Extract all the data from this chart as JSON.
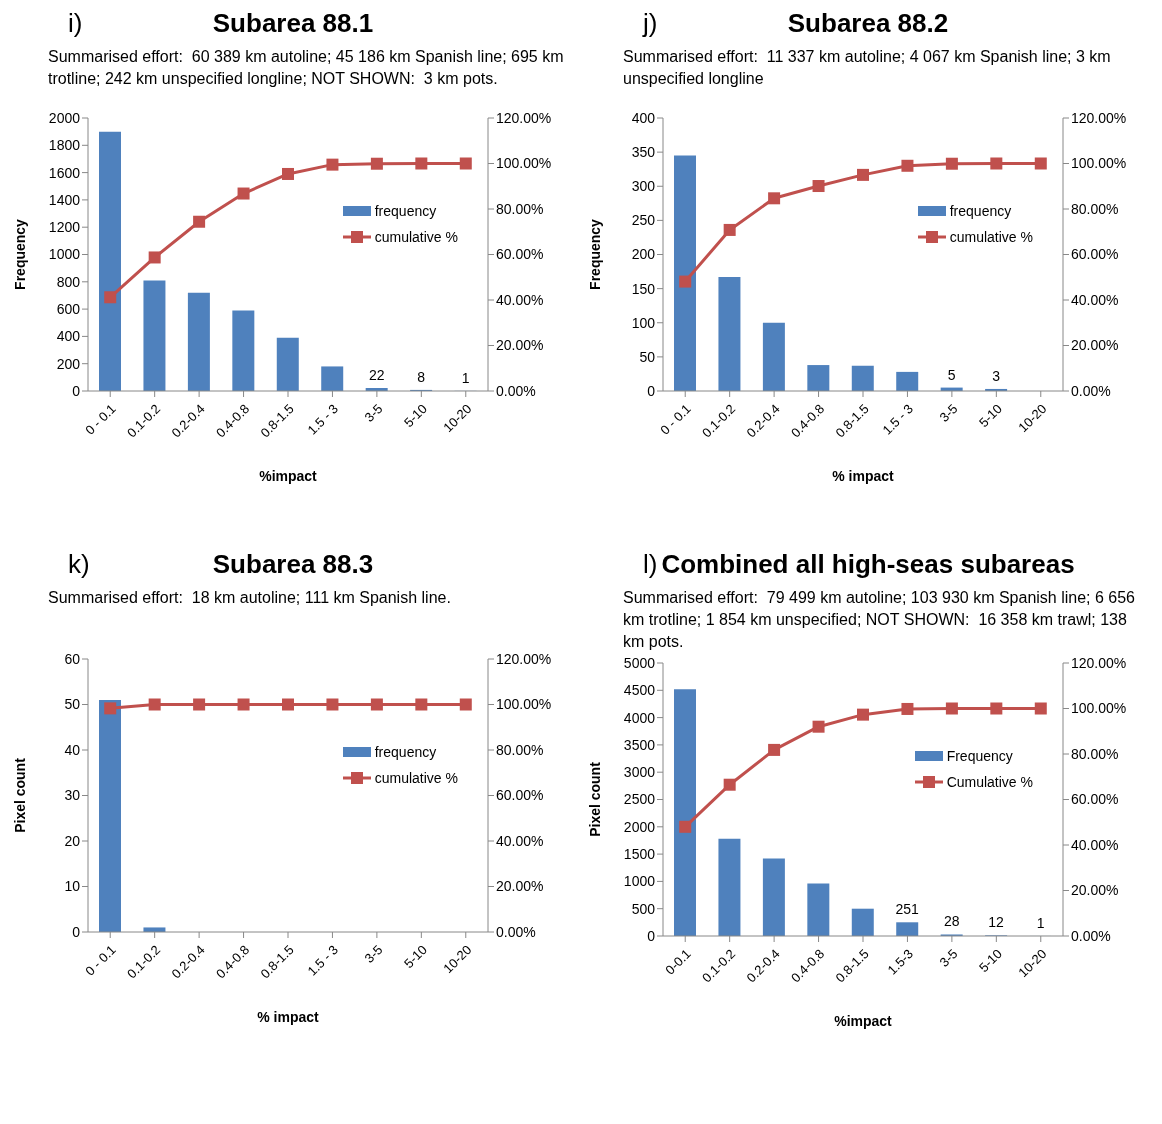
{
  "chart_data": [
    {
      "type": "bar",
      "title": "Subarea 88.1",
      "subtitle": "Summarised effort:  60 389 km autoline; 45 186 km Spanish line; 695 km trotline; 242 km unspecified longline; NOT SHOWN:  3 km pots.",
      "annotations": [
        "i)"
      ],
      "xlabel": "%impact",
      "ylabel": "Frequency",
      "categories": [
        "0 - 0.1",
        "0.1-0.2",
        "0.2-0.4",
        "0.4-0.8",
        "0.8-1.5",
        "1.5 - 3",
        "3-5",
        "5-10",
        "10-20"
      ],
      "series": [
        {
          "name": "frequency",
          "color": "#4f81bd",
          "values": [
            1900,
            810,
            720,
            590,
            390,
            180,
            22,
            8,
            1
          ],
          "value_labels": [
            null,
            null,
            null,
            null,
            null,
            null,
            "22",
            "8",
            "1"
          ]
        },
        {
          "name": "cumulative %",
          "type": "line",
          "axis": "y2",
          "color": "#c0504d",
          "values": [
            41.2,
            58.7,
            74.4,
            86.8,
            95.4,
            99.5,
            99.9,
            100,
            100
          ]
        }
      ],
      "ylim": [
        0,
        2000
      ],
      "yticks": [
        0,
        200,
        400,
        600,
        800,
        1000,
        1200,
        1400,
        1600,
        1800,
        2000
      ],
      "y2lim": [
        0,
        120
      ],
      "y2ticks": [
        {
          "value": 0,
          "label": "0.00%"
        },
        {
          "value": 20,
          "label": "20.00%"
        },
        {
          "value": 40,
          "label": "40.00%"
        },
        {
          "value": 60,
          "label": "60.00%"
        },
        {
          "value": 80,
          "label": "80.00%"
        },
        {
          "value": 100,
          "label": "100.00%"
        },
        {
          "value": 120,
          "label": "120.00%"
        }
      ],
      "legend": "top right",
      "marker": "square",
      "grid": false
    },
    {
      "type": "bar",
      "title": "Subarea 88.2",
      "subtitle": "Summarised effort:  11 337 km autoline; 4 067 km Spanish line; 3 km unspecified longline",
      "annotations": [
        "j)"
      ],
      "xlabel": "% impact",
      "ylabel": "Frequency",
      "categories": [
        "0 - 0.1",
        "0.1-0.2",
        "0.2-0.4",
        "0.4-0.8",
        "0.8-1.5",
        "1.5 - 3",
        "3-5",
        "5-10",
        "10-20"
      ],
      "series": [
        {
          "name": "frequency",
          "color": "#4f81bd",
          "values": [
            345,
            167,
            100,
            38,
            37,
            28,
            5,
            3,
            0
          ],
          "value_labels": [
            null,
            null,
            null,
            null,
            null,
            null,
            "5",
            "3",
            null
          ]
        },
        {
          "name": "cumulative %",
          "type": "line",
          "axis": "y2",
          "color": "#c0504d",
          "values": [
            48.1,
            70.8,
            84.7,
            90.1,
            95.0,
            99.0,
            99.9,
            100,
            100
          ]
        }
      ],
      "ylim": [
        0,
        400
      ],
      "yticks": [
        0,
        50,
        100,
        150,
        200,
        250,
        300,
        350,
        400
      ],
      "y2lim": [
        0,
        120
      ],
      "y2ticks": [
        {
          "value": 0,
          "label": "0.00%"
        },
        {
          "value": 20,
          "label": "20.00%"
        },
        {
          "value": 40,
          "label": "40.00%"
        },
        {
          "value": 60,
          "label": "60.00%"
        },
        {
          "value": 80,
          "label": "80.00%"
        },
        {
          "value": 100,
          "label": "100.00%"
        },
        {
          "value": 120,
          "label": "120.00%"
        }
      ],
      "legend": "top right",
      "marker": "square",
      "grid": false
    },
    {
      "type": "bar",
      "title": "Subarea 88.3",
      "subtitle": "Summarised effort:  18 km autoline; 111 km Spanish line.",
      "annotations": [
        "k)"
      ],
      "xlabel": "% impact",
      "ylabel": "Pixel count",
      "categories": [
        "0 - 0.1",
        "0.1-0.2",
        "0.2-0.4",
        "0.4-0.8",
        "0.8-1.5",
        "1.5 - 3",
        "3-5",
        "5-10",
        "10-20"
      ],
      "series": [
        {
          "name": "frequency",
          "color": "#4f81bd",
          "values": [
            51,
            1,
            0,
            0,
            0,
            0,
            0,
            0,
            0
          ]
        },
        {
          "name": "cumulative %",
          "type": "line",
          "axis": "y2",
          "color": "#c0504d",
          "values": [
            98.3,
            100,
            100,
            100,
            100,
            100,
            100,
            100,
            100
          ]
        }
      ],
      "ylim": [
        0,
        60
      ],
      "yticks": [
        0,
        10,
        20,
        30,
        40,
        50,
        60
      ],
      "y2lim": [
        0,
        120
      ],
      "y2ticks": [
        {
          "value": 0,
          "label": "0.00%"
        },
        {
          "value": 20,
          "label": "20.00%"
        },
        {
          "value": 40,
          "label": "40.00%"
        },
        {
          "value": 60,
          "label": "60.00%"
        },
        {
          "value": 80,
          "label": "80.00%"
        },
        {
          "value": 100,
          "label": "100.00%"
        },
        {
          "value": 120,
          "label": "120.00%"
        }
      ],
      "legend": "top right",
      "marker": "square",
      "grid": false
    },
    {
      "type": "bar",
      "title": "Combined all high-seas subareas",
      "subtitle": "Summarised effort:  79 499 km autoline; 103 930 km Spanish line; 6 656 km trotline; 1 854 km unspecified; NOT SHOWN:  16 358 km trawl; 138 km pots.",
      "annotations": [
        "l)"
      ],
      "xlabel": "%impact",
      "ylabel": "Pixel count",
      "categories": [
        "0-0.1",
        "0.1-0.2",
        "0.2-0.4",
        "0.4-0.8",
        "0.8-1.5",
        "1.5-3",
        "3-5",
        "5-10",
        "10-20"
      ],
      "series": [
        {
          "name": "Frequency",
          "color": "#4f81bd",
          "values": [
            4520,
            1780,
            1420,
            960,
            500,
            251,
            28,
            12,
            1
          ],
          "value_labels": [
            null,
            null,
            null,
            null,
            null,
            "251",
            "28",
            "12",
            "1"
          ]
        },
        {
          "name": "Cumulative %",
          "type": "line",
          "axis": "y2",
          "color": "#c0504d",
          "values": [
            48.0,
            66.5,
            81.8,
            92.0,
            97.3,
            99.8,
            100,
            100,
            100
          ]
        }
      ],
      "ylim": [
        0,
        5000
      ],
      "yticks": [
        0,
        500,
        1000,
        1500,
        2000,
        2500,
        3000,
        3500,
        4000,
        4500,
        5000
      ],
      "y2lim": [
        0,
        120
      ],
      "y2ticks": [
        {
          "value": 0,
          "label": "0.00%"
        },
        {
          "value": 20,
          "label": "20.00%"
        },
        {
          "value": 40,
          "label": "40.00%"
        },
        {
          "value": 60,
          "label": "60.00%"
        },
        {
          "value": 80,
          "label": "80.00%"
        },
        {
          "value": 100,
          "label": "100.00%"
        },
        {
          "value": 120,
          "label": "120.00%"
        }
      ],
      "legend": "top right",
      "marker": "square",
      "grid": false
    }
  ]
}
